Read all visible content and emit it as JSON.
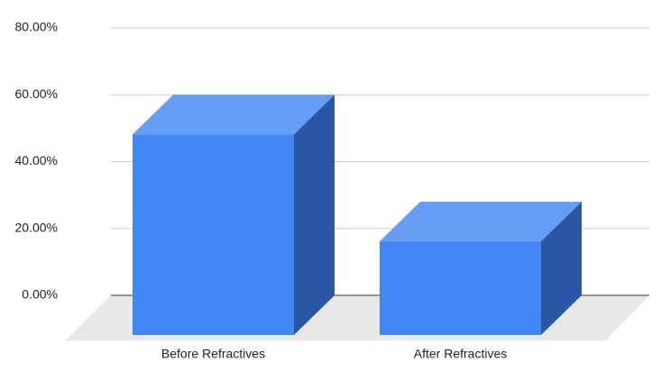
{
  "chart_data": {
    "type": "bar3d",
    "categories": [
      "Before Refractives",
      "After Refractives"
    ],
    "values": [
      60,
      28
    ],
    "color": "#4285f4",
    "top_color": "#669df6",
    "side_color": "#2a56a6",
    "ylim": [
      0,
      80
    ],
    "yticks": [
      {
        "value": 0,
        "label": "0.00%"
      },
      {
        "value": 20,
        "label": "20.00%"
      },
      {
        "value": 40,
        "label": "40.00%"
      },
      {
        "value": 60,
        "label": "60.00%"
      },
      {
        "value": 80,
        "label": "80.00%"
      }
    ],
    "grid": true
  }
}
